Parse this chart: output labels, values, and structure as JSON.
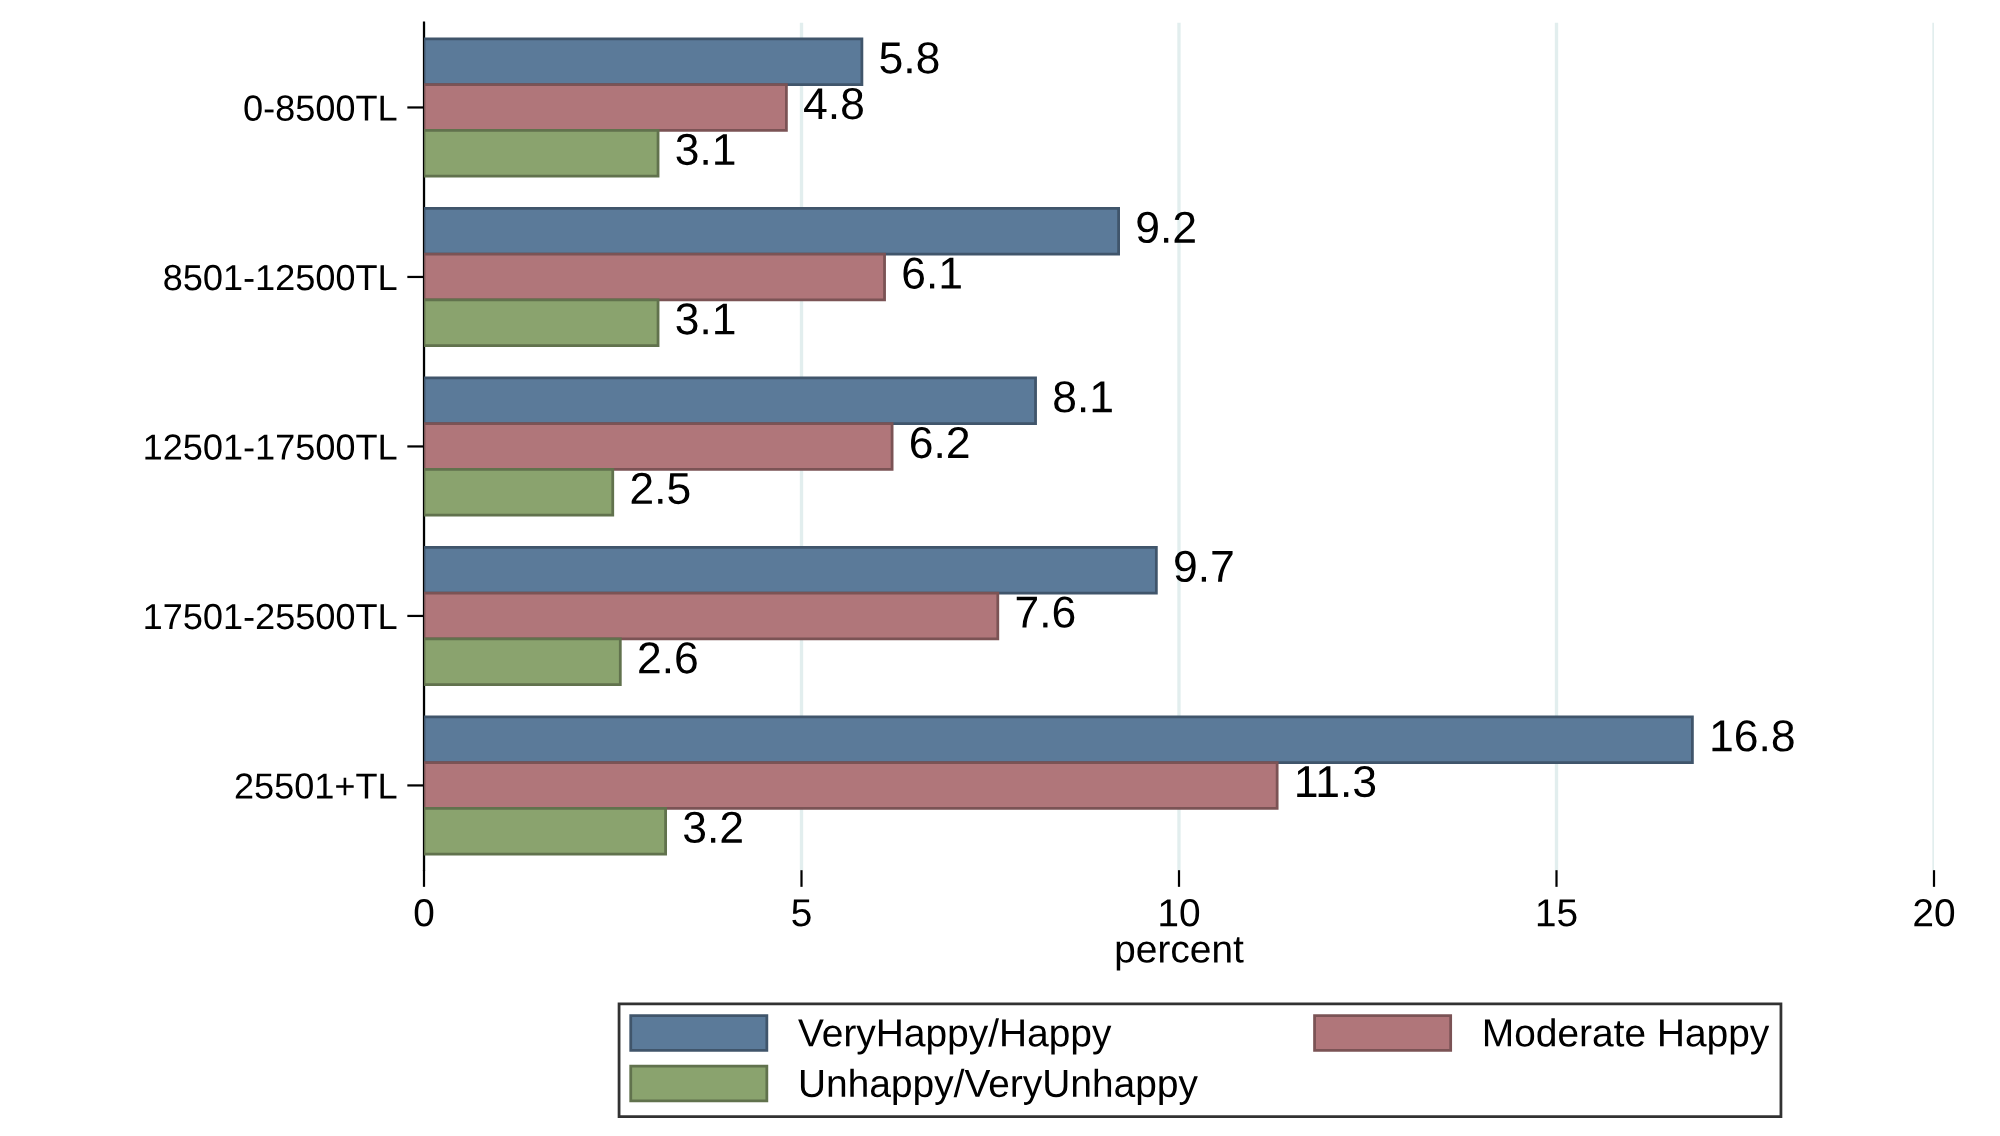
{
  "chart_data": {
    "type": "bar",
    "orientation": "horizontal",
    "xlabel": "percent",
    "categories": [
      "0-8500TL",
      "8501-12500TL",
      "12501-17500TL",
      "17501-25500TL",
      "25501+TL"
    ],
    "series": [
      {
        "name": "VeryHappy/Happy",
        "color": "#5b7a99",
        "values": [
          5.8,
          9.2,
          8.1,
          9.7,
          16.8
        ]
      },
      {
        "name": "Moderate Happy",
        "color": "#b0767a",
        "values": [
          4.8,
          6.1,
          6.2,
          7.6,
          11.3
        ]
      },
      {
        "name": "Unhappy/VeryUnhappy",
        "color": "#8aa36e",
        "values": [
          3.1,
          3.1,
          2.5,
          2.6,
          3.2
        ]
      }
    ],
    "xlim": [
      0,
      20
    ],
    "xticks": [
      0,
      5,
      10,
      15,
      20
    ],
    "grid": "x",
    "legend": "bottom",
    "data_labels": true
  }
}
